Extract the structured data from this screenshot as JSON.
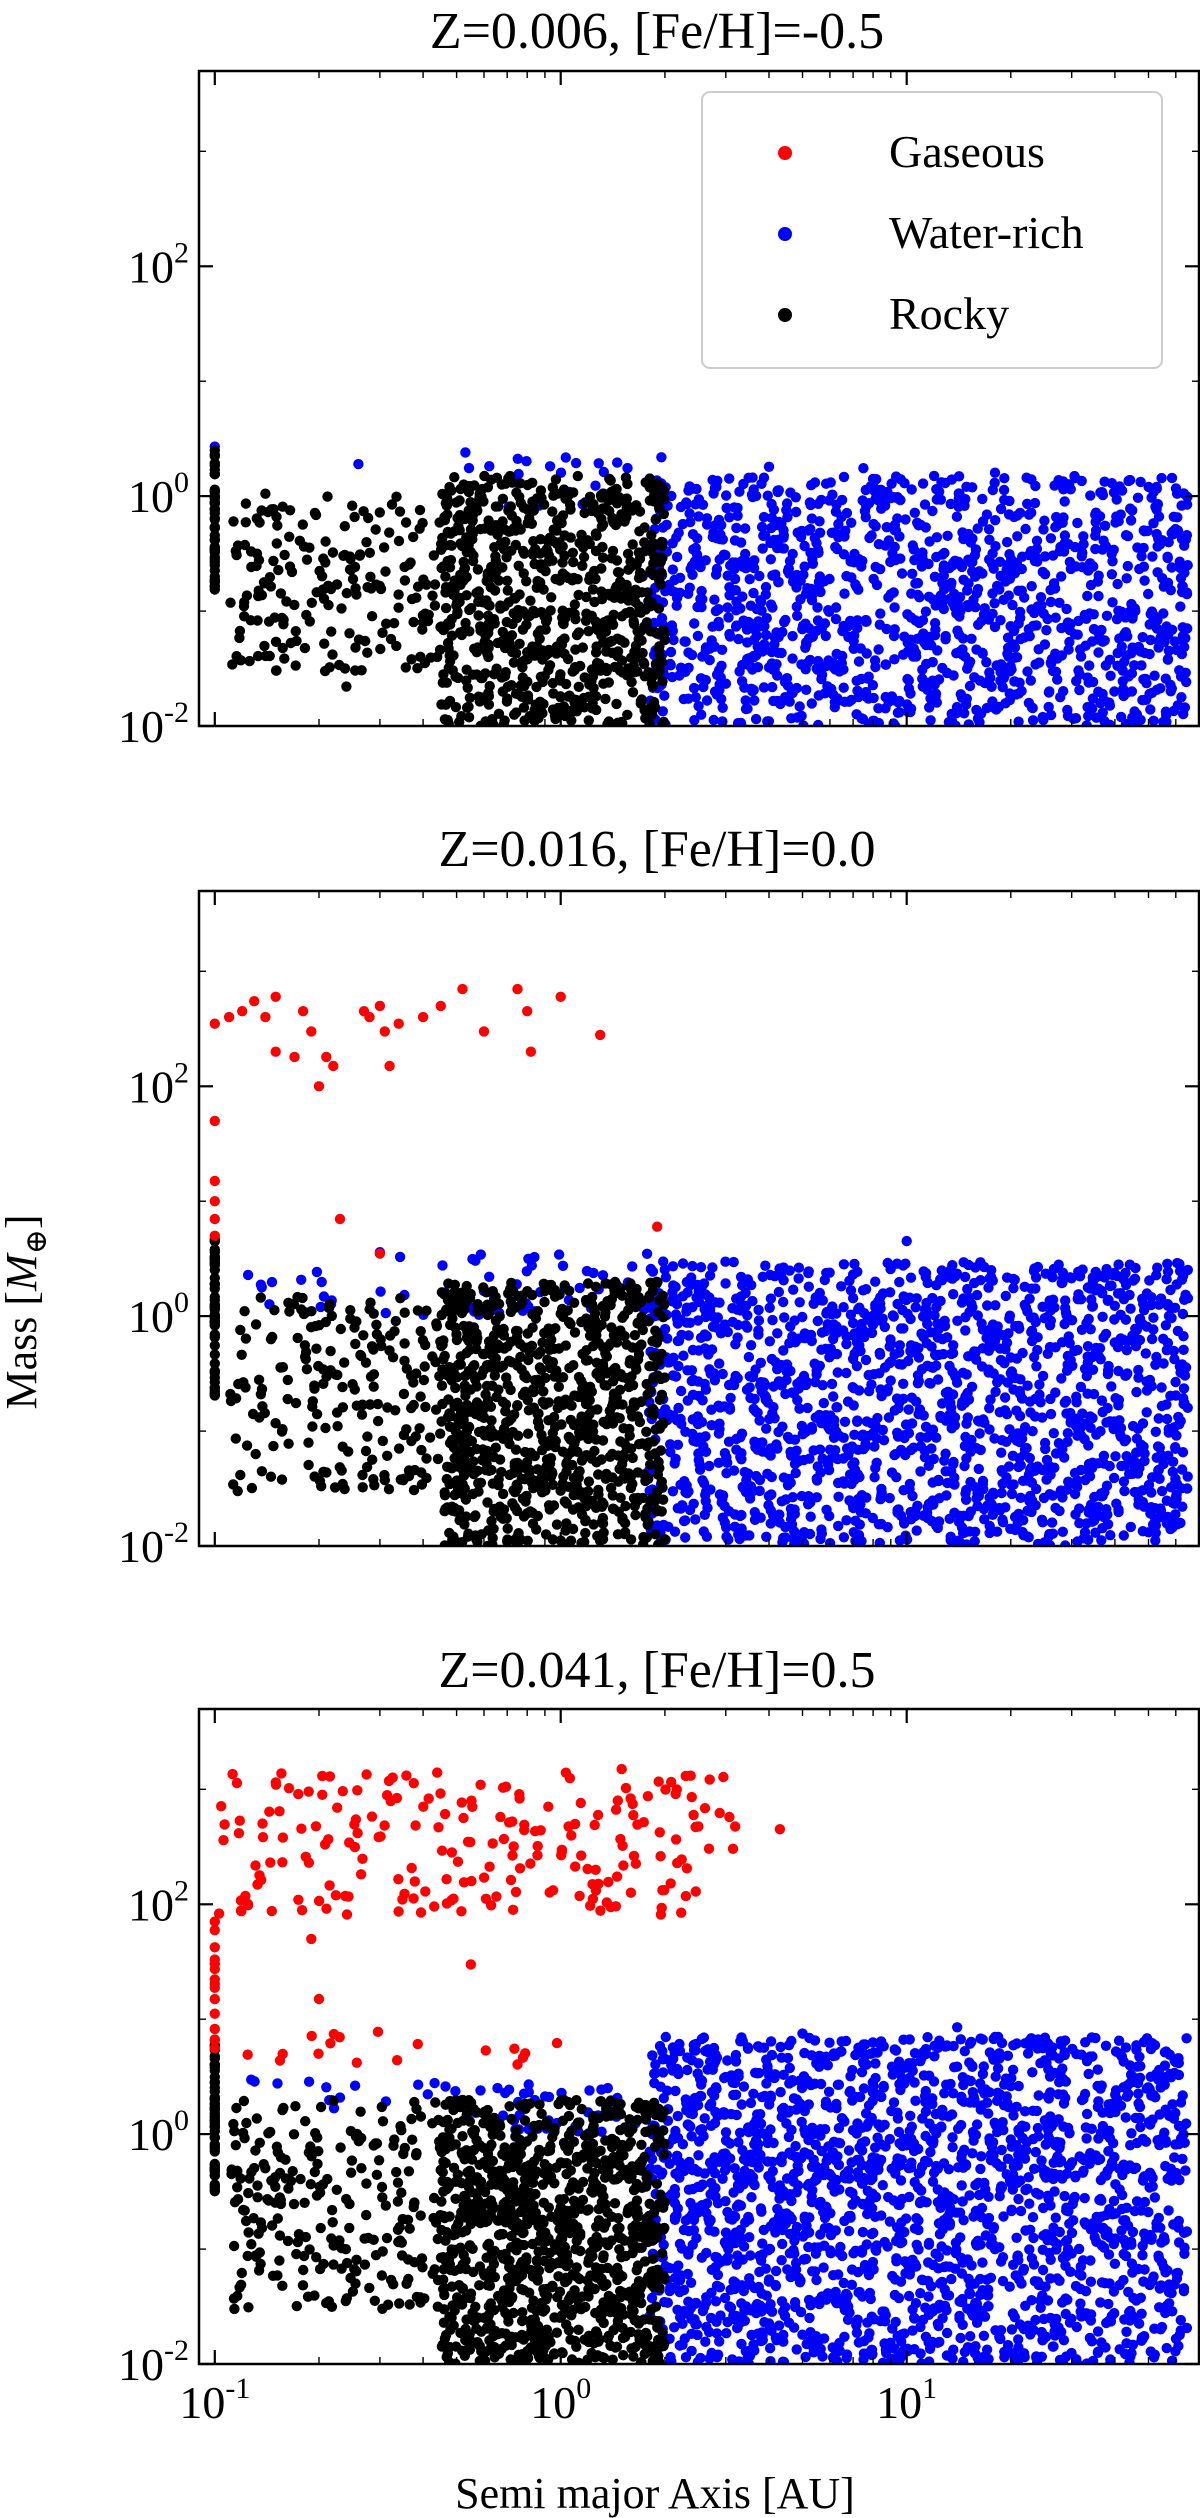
{
  "figure": {
    "xlabel": "Semi major Axis [AU]",
    "ylabel": "Mass [M⊕]"
  },
  "chart_data": [
    {
      "type": "scatter",
      "title": "Z=0.006, [Fe/H]=-0.5",
      "xscale": "log",
      "yscale": "log",
      "xlim": [
        0.09,
        70
      ],
      "ylim": [
        0.01,
        5000
      ],
      "xticks": [
        "10^-1",
        "10^0",
        "10^1"
      ],
      "yticks": [
        "10^-2",
        "10^0",
        "10^2"
      ],
      "legend": {
        "placement": "top-right",
        "entries": [
          {
            "name": "Gaseous",
            "color": "#ff0000"
          },
          {
            "name": "Water-rich",
            "color": "#0000ff"
          },
          {
            "name": "Rocky",
            "color": "#000000"
          }
        ]
      },
      "series": [
        {
          "name": "Rocky",
          "color": "#000000",
          "regions": [
            {
              "x": [
                0.1,
                0.1
              ],
              "y": [
                0.15,
                2.5
              ],
              "n": 50
            },
            {
              "x": [
                0.11,
                0.5
              ],
              "y": [
                0.03,
                1.0
              ],
              "n": 200
            },
            {
              "x": [
                0.45,
                2.0
              ],
              "y": [
                0.01,
                1.5
              ],
              "n": 750
            }
          ],
          "points": [
            [
              0.1,
              2.5
            ],
            [
              0.14,
              1.05
            ],
            [
              0.24,
              0.022
            ]
          ]
        },
        {
          "name": "Water-rich",
          "color": "#0000ff",
          "regions": [
            {
              "x": [
                1.8,
                65
              ],
              "y": [
                0.01,
                1.5
              ],
              "n": 1300
            },
            {
              "x": [
                0.5,
                2.0
              ],
              "y": [
                0.8,
                2.2
              ],
              "n": 25
            }
          ],
          "points": [
            [
              0.1,
              2.7
            ],
            [
              0.26,
              1.9
            ],
            [
              0.53,
              2.4
            ],
            [
              4.0,
              1.8
            ],
            [
              7.5,
              1.75
            ],
            [
              12.0,
              1.5
            ],
            [
              18.0,
              1.6
            ]
          ]
        },
        {
          "name": "Gaseous",
          "color": "#ff0000",
          "regions": [],
          "points": []
        }
      ]
    },
    {
      "type": "scatter",
      "title": "Z=0.016, [Fe/H]=0.0",
      "xscale": "log",
      "yscale": "log",
      "xlim": [
        0.09,
        70
      ],
      "ylim": [
        0.01,
        5000
      ],
      "xticks": [
        "10^-1",
        "10^0",
        "10^1"
      ],
      "yticks": [
        "10^-2",
        "10^0",
        "10^2"
      ],
      "series": [
        {
          "name": "Rocky",
          "color": "#000000",
          "regions": [
            {
              "x": [
                0.1,
                0.1
              ],
              "y": [
                0.2,
                5.0
              ],
              "n": 50
            },
            {
              "x": [
                0.11,
                0.55
              ],
              "y": [
                0.03,
                1.5
              ],
              "n": 220
            },
            {
              "x": [
                0.45,
                2.0
              ],
              "y": [
                0.01,
                2.0
              ],
              "n": 850
            }
          ],
          "points": []
        },
        {
          "name": "Water-rich",
          "color": "#0000ff",
          "regions": [
            {
              "x": [
                1.8,
                65
              ],
              "y": [
                0.01,
                3.0
              ],
              "n": 1600
            },
            {
              "x": [
                0.3,
                2.0
              ],
              "y": [
                1.0,
                3.5
              ],
              "n": 45
            },
            {
              "x": [
                0.12,
                0.3
              ],
              "y": [
                1.2,
                2.5
              ],
              "n": 12
            }
          ],
          "points": [
            [
              10.0,
              4.5
            ],
            [
              0.3,
              3.6
            ]
          ]
        },
        {
          "name": "Gaseous",
          "color": "#ff0000",
          "regions": [],
          "points": [
            [
              0.1,
              350
            ],
            [
              0.11,
              400
            ],
            [
              0.12,
              450
            ],
            [
              0.13,
              550
            ],
            [
              0.15,
              600
            ],
            [
              0.14,
              400
            ],
            [
              0.15,
              200
            ],
            [
              0.17,
              180
            ],
            [
              0.18,
              450
            ],
            [
              0.19,
              300
            ],
            [
              0.2,
              100
            ],
            [
              0.21,
              180
            ],
            [
              0.22,
              150
            ],
            [
              0.27,
              450
            ],
            [
              0.28,
              400
            ],
            [
              0.3,
              500
            ],
            [
              0.31,
              300
            ],
            [
              0.32,
              150
            ],
            [
              0.34,
              350
            ],
            [
              0.4,
              400
            ],
            [
              0.45,
              500
            ],
            [
              0.52,
              700
            ],
            [
              0.6,
              300
            ],
            [
              0.75,
              700
            ],
            [
              0.8,
              450
            ],
            [
              0.82,
              200
            ],
            [
              1.0,
              600
            ],
            [
              1.3,
              280
            ],
            [
              0.1,
              50
            ],
            [
              0.1,
              15
            ],
            [
              0.1,
              10
            ],
            [
              0.1,
              7
            ],
            [
              0.1,
              5
            ],
            [
              0.23,
              7
            ],
            [
              0.3,
              3.5
            ],
            [
              1.9,
              6
            ]
          ]
        }
      ]
    },
    {
      "type": "scatter",
      "title": "Z=0.041, [Fe/H]=0.5",
      "xscale": "log",
      "yscale": "log",
      "xlim": [
        0.09,
        70
      ],
      "ylim": [
        0.01,
        5000
      ],
      "xticks": [
        "10^-1",
        "10^0",
        "10^1"
      ],
      "yticks": [
        "10^-2",
        "10^0",
        "10^2"
      ],
      "series": [
        {
          "name": "Rocky",
          "color": "#000000",
          "regions": [
            {
              "x": [
                0.1,
                0.1
              ],
              "y": [
                0.3,
                7.0
              ],
              "n": 60
            },
            {
              "x": [
                0.11,
                0.55
              ],
              "y": [
                0.03,
                2.0
              ],
              "n": 260
            },
            {
              "x": [
                0.45,
                2.0
              ],
              "y": [
                0.01,
                2.0
              ],
              "n": 1000
            }
          ],
          "points": []
        },
        {
          "name": "Water-rich",
          "color": "#0000ff",
          "regions": [
            {
              "x": [
                1.8,
                65
              ],
              "y": [
                0.01,
                7.0
              ],
              "n": 2000
            },
            {
              "x": [
                0.6,
                2.0
              ],
              "y": [
                1.0,
                3.5
              ],
              "n": 40
            },
            {
              "x": [
                0.12,
                0.6
              ],
              "y": [
                1.5,
                3.0
              ],
              "n": 18
            }
          ],
          "points": [
            [
              5.0,
              7.5
            ],
            [
              14.0,
              8.5
            ],
            [
              18.0,
              7.0
            ],
            [
              28.0,
              6.0
            ]
          ]
        },
        {
          "name": "Gaseous",
          "color": "#ff0000",
          "regions": [
            {
              "x": [
                0.1,
                3.2
              ],
              "y": [
                80,
                1400
              ],
              "n": 210
            },
            {
              "x": [
                0.1,
                0.1
              ],
              "y": [
                5.0,
                80
              ],
              "n": 15
            },
            {
              "x": [
                0.12,
                1.0
              ],
              "y": [
                4.0,
                8.0
              ],
              "n": 18
            }
          ],
          "points": [
            [
              4.3,
              450
            ],
            [
              0.19,
              50
            ],
            [
              0.2,
              15
            ],
            [
              0.55,
              30
            ],
            [
              1.1,
              500
            ],
            [
              1.5,
              1500
            ]
          ]
        }
      ]
    }
  ]
}
